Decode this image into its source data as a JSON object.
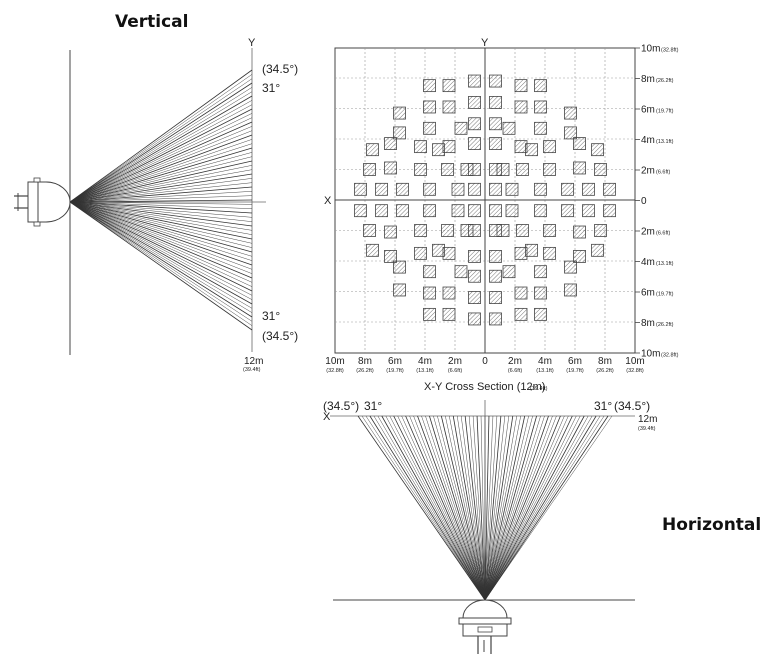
{
  "titles": {
    "vertical": "Vertical",
    "horizontal": "Horizontal"
  },
  "vertical_view": {
    "axis_y": "Y",
    "angle_outer_top": "(34.5°)",
    "angle_inner_top": "31°",
    "angle_inner_bottom": "31°",
    "angle_outer_bottom": "(34.5°)",
    "range_m": "12m",
    "range_ft": "(39.4ft)"
  },
  "cross_section": {
    "caption": "X-Y Cross Section (12m)",
    "caption_ft": "(39.4ft)",
    "axis_x": "X",
    "axis_y": "Y",
    "right_labels": [
      {
        "m": "10m",
        "ft": "(32.8ft)"
      },
      {
        "m": "8m",
        "ft": "(26.2ft)"
      },
      {
        "m": "6m",
        "ft": "(19.7ft)"
      },
      {
        "m": "4m",
        "ft": "(13.1ft)"
      },
      {
        "m": "2m",
        "ft": "(6.6ft)"
      },
      {
        "m": "0",
        "ft": ""
      },
      {
        "m": "2m",
        "ft": "(6.6ft)"
      },
      {
        "m": "4m",
        "ft": "(13.1ft)"
      },
      {
        "m": "6m",
        "ft": "(19.7ft)"
      },
      {
        "m": "8m",
        "ft": "(26.2ft)"
      },
      {
        "m": "10m",
        "ft": "(32.8ft)"
      }
    ],
    "bottom_labels": [
      {
        "m": "10m",
        "ft": "(32.8ft)"
      },
      {
        "m": "8m",
        "ft": "(26.2ft)"
      },
      {
        "m": "6m",
        "ft": "(19.7ft)"
      },
      {
        "m": "4m",
        "ft": "(13.1ft)"
      },
      {
        "m": "2m",
        "ft": "(6.6ft)"
      },
      {
        "m": "0",
        "ft": ""
      },
      {
        "m": "2m",
        "ft": "(6.6ft)"
      },
      {
        "m": "4m",
        "ft": "(13.1ft)"
      },
      {
        "m": "6m",
        "ft": "(19.7ft)"
      },
      {
        "m": "8m",
        "ft": "(26.2ft)"
      },
      {
        "m": "10m",
        "ft": "(32.8ft)"
      }
    ],
    "zone_cells_x_y": [
      [
        -3.7,
        7.5
      ],
      [
        -2.4,
        7.5
      ],
      [
        -0.7,
        7.8
      ],
      [
        0.7,
        7.8
      ],
      [
        2.4,
        7.5
      ],
      [
        3.7,
        7.5
      ],
      [
        -5.7,
        5.7
      ],
      [
        -3.7,
        6.1
      ],
      [
        -2.4,
        6.1
      ],
      [
        -0.7,
        6.4
      ],
      [
        0.7,
        6.4
      ],
      [
        2.4,
        6.1
      ],
      [
        3.7,
        6.1
      ],
      [
        5.7,
        5.7
      ],
      [
        -5.7,
        4.4
      ],
      [
        -3.7,
        4.7
      ],
      [
        -1.6,
        4.7
      ],
      [
        -0.7,
        5.0
      ],
      [
        0.7,
        5.0
      ],
      [
        1.6,
        4.7
      ],
      [
        3.7,
        4.7
      ],
      [
        5.7,
        4.4
      ],
      [
        -7.5,
        3.3
      ],
      [
        -6.3,
        3.7
      ],
      [
        -4.3,
        3.5
      ],
      [
        -3.1,
        3.3
      ],
      [
        -2.4,
        3.5
      ],
      [
        -0.7,
        3.7
      ],
      [
        0.7,
        3.7
      ],
      [
        2.4,
        3.5
      ],
      [
        3.1,
        3.3
      ],
      [
        4.3,
        3.5
      ],
      [
        6.3,
        3.7
      ],
      [
        7.5,
        3.3
      ],
      [
        -7.7,
        2.0
      ],
      [
        -6.3,
        2.1
      ],
      [
        -4.3,
        2.0
      ],
      [
        -2.5,
        2.0
      ],
      [
        -1.2,
        2.0
      ],
      [
        -0.7,
        2.0
      ],
      [
        0.7,
        2.0
      ],
      [
        1.2,
        2.0
      ],
      [
        2.5,
        2.0
      ],
      [
        4.3,
        2.0
      ],
      [
        6.3,
        2.1
      ],
      [
        7.7,
        2.0
      ],
      [
        -8.3,
        0.7
      ],
      [
        -6.9,
        0.7
      ],
      [
        -5.5,
        0.7
      ],
      [
        -3.7,
        0.7
      ],
      [
        -1.8,
        0.7
      ],
      [
        -0.7,
        0.7
      ],
      [
        0.7,
        0.7
      ],
      [
        1.8,
        0.7
      ],
      [
        3.7,
        0.7
      ],
      [
        5.5,
        0.7
      ],
      [
        6.9,
        0.7
      ],
      [
        8.3,
        0.7
      ],
      [
        -8.3,
        -0.7
      ],
      [
        -6.9,
        -0.7
      ],
      [
        -5.5,
        -0.7
      ],
      [
        -3.7,
        -0.7
      ],
      [
        -1.8,
        -0.7
      ],
      [
        -0.7,
        -0.7
      ],
      [
        0.7,
        -0.7
      ],
      [
        1.8,
        -0.7
      ],
      [
        3.7,
        -0.7
      ],
      [
        5.5,
        -0.7
      ],
      [
        6.9,
        -0.7
      ],
      [
        8.3,
        -0.7
      ],
      [
        -7.7,
        -2.0
      ],
      [
        -6.3,
        -2.1
      ],
      [
        -4.3,
        -2.0
      ],
      [
        -2.5,
        -2.0
      ],
      [
        -1.2,
        -2.0
      ],
      [
        -0.7,
        -2.0
      ],
      [
        0.7,
        -2.0
      ],
      [
        1.2,
        -2.0
      ],
      [
        2.5,
        -2.0
      ],
      [
        4.3,
        -2.0
      ],
      [
        6.3,
        -2.1
      ],
      [
        7.7,
        -2.0
      ],
      [
        -7.5,
        -3.3
      ],
      [
        -6.3,
        -3.7
      ],
      [
        -4.3,
        -3.5
      ],
      [
        -3.1,
        -3.3
      ],
      [
        -2.4,
        -3.5
      ],
      [
        -0.7,
        -3.7
      ],
      [
        0.7,
        -3.7
      ],
      [
        2.4,
        -3.5
      ],
      [
        3.1,
        -3.3
      ],
      [
        4.3,
        -3.5
      ],
      [
        6.3,
        -3.7
      ],
      [
        7.5,
        -3.3
      ],
      [
        -5.7,
        -4.4
      ],
      [
        -3.7,
        -4.7
      ],
      [
        -1.6,
        -4.7
      ],
      [
        -0.7,
        -5.0
      ],
      [
        0.7,
        -5.0
      ],
      [
        1.6,
        -4.7
      ],
      [
        3.7,
        -4.7
      ],
      [
        5.7,
        -4.4
      ],
      [
        -5.7,
        -5.9
      ],
      [
        -3.7,
        -6.1
      ],
      [
        -2.4,
        -6.1
      ],
      [
        -0.7,
        -6.4
      ],
      [
        0.7,
        -6.4
      ],
      [
        2.4,
        -6.1
      ],
      [
        3.7,
        -6.1
      ],
      [
        5.7,
        -5.9
      ],
      [
        -3.7,
        -7.5
      ],
      [
        -2.4,
        -7.5
      ],
      [
        -0.7,
        -7.8
      ],
      [
        0.7,
        -7.8
      ],
      [
        2.4,
        -7.5
      ],
      [
        3.7,
        -7.5
      ]
    ]
  },
  "horizontal_view": {
    "axis_x": "X",
    "angle_outer_left": "(34.5°)",
    "angle_inner_left": "31°",
    "angle_inner_right": "31°",
    "angle_outer_right": "(34.5°)",
    "range_m": "12m",
    "range_ft": "(39.4ft)"
  }
}
